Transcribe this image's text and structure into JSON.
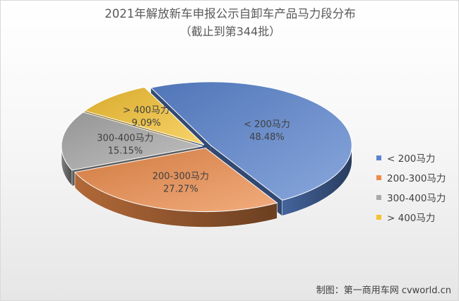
{
  "chart_data": {
    "type": "pie",
    "title": "2021年解放新车申报公示自卸车产品马力段分布",
    "subtitle": "（截止到第344批）",
    "categories": [
      "< 200马力",
      "200-300马力",
      "300-400马力",
      "> 400马力"
    ],
    "values": [
      48.48,
      27.27,
      15.15,
      9.09
    ],
    "value_labels": [
      "48.48%",
      "27.27%",
      "15.15%",
      "9.09%"
    ],
    "colors": [
      "#5b85d0",
      "#ed8c4a",
      "#a9a9a9",
      "#f5c232"
    ],
    "legend_position": "right",
    "style": "3d-exploded"
  },
  "credit": "制图：第一商用车网 cvworld.cn"
}
